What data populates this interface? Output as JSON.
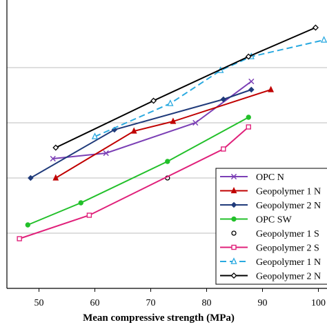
{
  "chart_data": {
    "type": "line",
    "xlabel": "Mean compressive strength (MPa)",
    "ylabel": "",
    "xlim": [
      45,
      101
    ],
    "ylim": [
      0,
      100
    ],
    "x_ticks": [
      "50",
      "60",
      "70",
      "80",
      "90",
      "100"
    ],
    "grid": "horizontal",
    "legend_position": "bottom-right",
    "series": [
      {
        "name": "OPC N",
        "color": "#7b3fb5",
        "marker": "x",
        "dash": "solid",
        "points": [
          [
            52.5,
            47
          ],
          [
            62,
            49
          ],
          [
            78,
            60
          ],
          [
            88,
            75
          ]
        ]
      },
      {
        "name": "Geopolymer 1 N",
        "color": "#c00000",
        "marker": "triangle",
        "dash": "solid",
        "points": [
          [
            53,
            40
          ],
          [
            67,
            57
          ],
          [
            74,
            60.5
          ],
          [
            91.5,
            72
          ]
        ]
      },
      {
        "name": "Geopolymer 2 N",
        "color": "#1f3a7a",
        "marker": "diamond",
        "dash": "solid",
        "points": [
          [
            48.5,
            40
          ],
          [
            63.5,
            57.5
          ],
          [
            83,
            68.5
          ],
          [
            88,
            72
          ]
        ]
      },
      {
        "name": "OPC SW",
        "color": "#22c02a",
        "marker": "circle-filled",
        "dash": "solid",
        "points": [
          [
            48,
            23
          ],
          [
            57.5,
            31
          ],
          [
            73,
            46
          ],
          [
            87.5,
            62
          ]
        ]
      },
      {
        "name": "Geopolymer 1 S",
        "color": "#000000",
        "marker": "circle-open",
        "dash": "none",
        "points": [
          [
            73,
            40
          ]
        ]
      },
      {
        "name": "Geopolymer 2 S",
        "color": "#e0207a",
        "marker": "square-open",
        "dash": "solid",
        "points": [
          [
            46.5,
            18
          ],
          [
            59,
            26.5
          ],
          [
            83,
            50.5
          ],
          [
            87.5,
            58.5
          ]
        ]
      },
      {
        "name": "Geopolymer 1 N",
        "color": "#29a9e0",
        "marker": "triangle-open",
        "dash": "dashed",
        "points": [
          [
            60,
            55
          ],
          [
            73.5,
            67
          ],
          [
            82.5,
            79
          ],
          [
            88,
            84
          ],
          [
            101,
            90
          ]
        ]
      },
      {
        "name": "Geopolymer 2 N",
        "color": "#000000",
        "marker": "diamond-open",
        "dash": "solid",
        "points": [
          [
            53,
            51
          ],
          [
            70.5,
            68
          ],
          [
            87.5,
            84
          ],
          [
            99.5,
            94.5
          ]
        ]
      }
    ]
  }
}
